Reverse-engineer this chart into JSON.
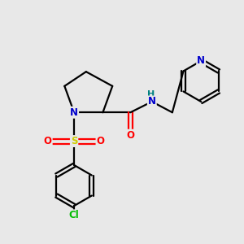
{
  "background_color": "#e8e8e8",
  "bond_color": "#000000",
  "atom_colors": {
    "N": "#0000cc",
    "O": "#ff0000",
    "S": "#cccc00",
    "Cl": "#00bb00",
    "H": "#008080",
    "C": "#000000"
  },
  "figsize": [
    3.0,
    3.0
  ],
  "dpi": 100,
  "lw": 1.6,
  "fontsize": 8.5
}
